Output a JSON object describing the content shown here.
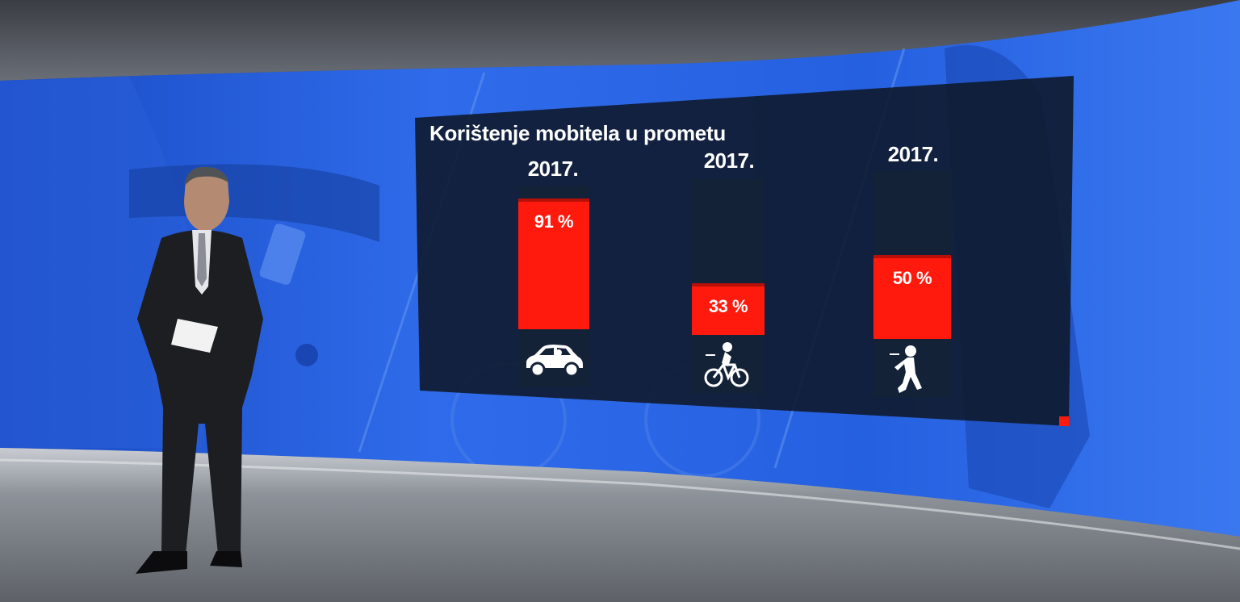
{
  "chart_data": {
    "type": "bar",
    "title": "Korištenje mobitela u prometu",
    "categories": [
      "2017.",
      "2017.",
      "2017."
    ],
    "values": [
      91,
      33,
      50
    ],
    "value_labels": [
      "91 %",
      "33 %",
      "50 %"
    ],
    "ylim": [
      0,
      100
    ],
    "category_icons": [
      "car-icon",
      "bicycle-icon",
      "pedestrian-icon"
    ],
    "bar_color": "#ff1a0d",
    "track_color": "#142238"
  },
  "colors": {
    "wall_blue": "#1d56d6",
    "panel_bg": "#0e1a2c",
    "accent_red": "#ff1a0d"
  }
}
